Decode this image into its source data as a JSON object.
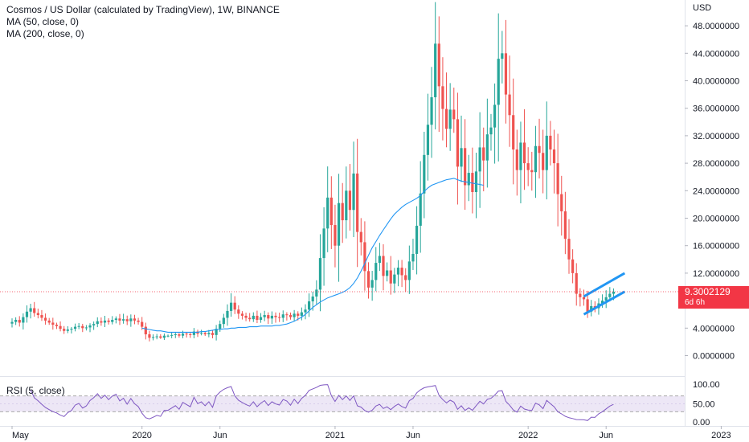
{
  "legend": {
    "title": "Cosmos / US Dollar (calculated by TradingView), 1W, BINANCE",
    "ma50": "MA (50, close, 0)",
    "ma200": "MA (200, close, 0)",
    "rsi": "RSI (5, close)"
  },
  "price_axis": {
    "unit": "USD",
    "ticks": [
      {
        "value": 48,
        "label": "48.0000000"
      },
      {
        "value": 44,
        "label": "44.0000000"
      },
      {
        "value": 40,
        "label": "40.0000000"
      },
      {
        "value": 36,
        "label": "36.0000000"
      },
      {
        "value": 32,
        "label": "32.0000000"
      },
      {
        "value": 28,
        "label": "28.0000000"
      },
      {
        "value": 24,
        "label": "24.0000000"
      },
      {
        "value": 20,
        "label": "20.0000000"
      },
      {
        "value": 16,
        "label": "16.0000000"
      },
      {
        "value": 12,
        "label": "12.0000000"
      },
      {
        "value": 4,
        "label": "4.0000000"
      },
      {
        "value": 0,
        "label": "0.0000000"
      }
    ],
    "current_price": {
      "value": 9.3002129,
      "label": "9.3002129",
      "countdown": "6d 6h",
      "color": "#f23645"
    }
  },
  "rsi_axis": {
    "ticks": [
      {
        "value": 100,
        "label": "100.00"
      },
      {
        "value": 50,
        "label": "50.00"
      },
      {
        "value": 0,
        "label": "0.00"
      }
    ],
    "band": [
      30,
      70
    ]
  },
  "time_axis": {
    "ticks": [
      {
        "label": "May",
        "week": 0
      },
      {
        "label": "2020",
        "week": 35
      },
      {
        "label": "Jun",
        "week": 56
      },
      {
        "label": "2021",
        "week": 87
      },
      {
        "label": "Jun",
        "week": 108
      },
      {
        "label": "2022",
        "week": 139
      },
      {
        "label": "Jun",
        "week": 160
      },
      {
        "label": "2023",
        "week": 191
      }
    ]
  },
  "colors": {
    "up": "#26a69a",
    "down": "#ef5350",
    "ma": "#2196f3",
    "rsi_line": "#7e57c2",
    "rsi_band": "#ede7f6",
    "channel": "#2196f3",
    "price_line": "#f23645"
  },
  "chart_data": {
    "type": "candlestick",
    "interval": "1W",
    "symbol": "ATOMUSD",
    "ylim": [
      -3,
      50
    ],
    "weekly_close_approx": [
      4.9,
      5.2,
      4.8,
      5.6,
      6.4,
      6.9,
      6.2,
      5.9,
      5.5,
      5.1,
      4.8,
      4.5,
      4.3,
      3.9,
      3.6,
      3.8,
      3.9,
      4.2,
      4.3,
      4.0,
      4.1,
      4.4,
      4.6,
      5.0,
      4.8,
      5.1,
      4.9,
      5.2,
      5.4,
      5.1,
      5.3,
      5.0,
      5.4,
      5.1,
      4.9,
      4.2,
      3.1,
      2.6,
      2.7,
      2.8,
      2.6,
      2.9,
      2.9,
      3.0,
      3.1,
      2.9,
      3.2,
      3.1,
      3.0,
      3.5,
      3.2,
      3.3,
      3.1,
      3.3,
      3.0,
      3.9,
      4.6,
      5.5,
      6.5,
      7.7,
      6.7,
      6.1,
      5.8,
      5.5,
      5.3,
      5.8,
      5.2,
      5.6,
      5.9,
      5.4,
      5.8,
      5.6,
      5.5,
      6.0,
      5.9,
      5.6,
      6.1,
      5.8,
      6.3,
      6.7,
      7.9,
      8.6,
      9.6,
      14.2,
      18.5,
      23.0,
      19.0,
      16.0,
      22.2,
      19.7,
      24.0,
      21.2,
      26.5,
      18.0,
      16.5,
      12.3,
      9.9,
      11.0,
      13.5,
      14.5,
      11.6,
      12.4,
      10.5,
      11.8,
      12.8,
      11.7,
      11.0,
      13.7,
      14.8,
      18.9,
      23.6,
      29.2,
      33.6,
      37.6,
      45.4,
      39.2,
      35.9,
      33.0,
      35.8,
      34.4,
      27.5,
      30.2,
      24.8,
      26.6,
      23.8,
      26.8,
      30.3,
      28.4,
      32.2,
      33.2,
      36.5,
      43.2,
      44.0,
      38.0,
      35.0,
      30.0,
      27.0,
      31.0,
      28.0,
      27.0,
      26.7,
      30.5,
      29.5,
      27.0,
      32.0,
      30.0,
      28.0,
      23.5,
      21.0,
      17.0,
      14.0,
      12.0,
      9.0,
      8.5,
      8.2,
      6.4,
      7.2,
      6.9,
      7.6,
      8.0,
      8.5,
      9.0,
      9.3
    ],
    "ma50": {
      "name": "MA (50, close, 0)",
      "start_week": 35,
      "values": [
        4.0,
        3.9,
        3.8,
        3.7,
        3.6,
        3.6,
        3.5,
        3.4,
        3.4,
        3.4,
        3.4,
        3.4,
        3.4,
        3.4,
        3.4,
        3.4,
        3.5,
        3.5,
        3.6,
        3.7,
        3.8,
        3.8,
        3.9,
        3.9,
        4.0,
        4.0,
        4.1,
        4.1,
        4.1,
        4.2,
        4.2,
        4.2,
        4.3,
        4.3,
        4.3,
        4.3,
        4.4,
        4.4,
        4.5,
        4.6,
        4.8,
        5.0,
        5.3,
        5.6,
        6.0,
        6.5,
        7.0,
        7.4,
        7.8,
        8.1,
        8.4,
        8.6,
        8.8,
        9.0,
        9.2,
        9.5,
        9.9,
        10.5,
        11.3,
        12.3,
        13.4,
        14.6,
        15.7,
        16.6,
        17.5,
        18.3,
        19.1,
        19.9,
        20.6,
        21.1,
        21.6,
        22.0,
        22.3,
        22.6,
        22.9,
        23.3,
        23.9,
        24.4,
        24.8,
        25.0,
        25.2,
        25.4,
        25.6,
        25.7,
        25.8,
        25.6,
        25.4,
        25.3,
        25.2,
        25.1,
        25.0,
        24.9,
        24.8
      ]
    },
    "rsi": {
      "name": "RSI (5, close)",
      "ylim": [
        0,
        100
      ]
    },
    "channel": {
      "lower": [
        [
          154,
          6.0
        ],
        [
          165,
          9.3
        ]
      ],
      "upper": [
        [
          154,
          8.6
        ],
        [
          165,
          12.0
        ]
      ]
    }
  }
}
